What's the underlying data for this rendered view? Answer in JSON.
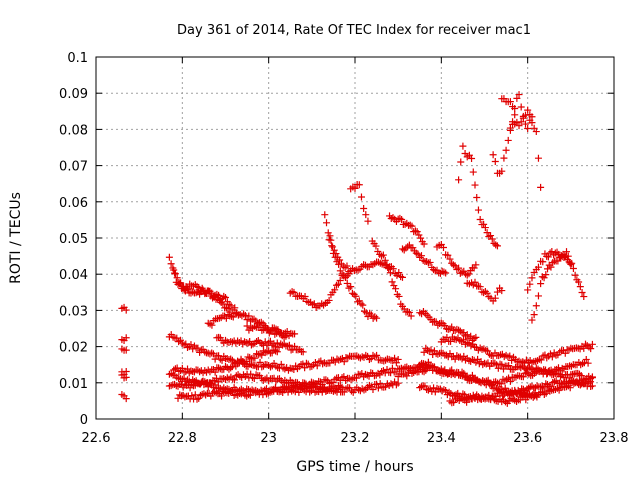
{
  "chart_data": {
    "type": "scatter",
    "title": "Day 361 of 2014, Rate Of TEC Index for receiver mac1",
    "xlabel": "GPS time / hours",
    "ylabel": "ROTI / TECUs",
    "xlim": [
      22.6,
      23.8
    ],
    "ylim": [
      0,
      0.1
    ],
    "xticks": [
      "22.6",
      "22.8",
      "23",
      "23.2",
      "23.4",
      "23.6",
      "23.8"
    ],
    "yticks": [
      "0",
      "0.01",
      "0.02",
      "0.03",
      "0.04",
      "0.05",
      "0.06",
      "0.07",
      "0.08",
      "0.09",
      "0.1"
    ],
    "grid": true,
    "marker": "+",
    "color": "#e00000",
    "tracks": [
      {
        "x": [
          22.66,
          22.67
        ],
        "y": [
          0.031,
          0.03
        ]
      },
      {
        "x": [
          22.66,
          22.67
        ],
        "y": [
          0.022,
          0.022
        ]
      },
      {
        "x": [
          22.66,
          22.67
        ],
        "y": [
          0.019,
          0.019
        ]
      },
      {
        "x": [
          22.66,
          22.67
        ],
        "y": [
          0.013,
          0.013
        ]
      },
      {
        "x": [
          22.66,
          22.67
        ],
        "y": [
          0.012,
          0.011
        ]
      },
      {
        "x": [
          22.66,
          22.67
        ],
        "y": [
          0.007,
          0.006
        ]
      },
      {
        "x": [
          22.77,
          22.79,
          22.82,
          22.86,
          22.9,
          22.93
        ],
        "y": [
          0.044,
          0.037,
          0.035,
          0.035,
          0.033,
          0.029
        ]
      },
      {
        "x": [
          22.78,
          22.8,
          22.83,
          22.87,
          22.91
        ],
        "y": [
          0.041,
          0.036,
          0.037,
          0.034,
          0.03
        ]
      },
      {
        "x": [
          22.77,
          22.8,
          22.84,
          22.88,
          22.92,
          22.96,
          23.0,
          23.05,
          23.1,
          23.15,
          23.2,
          23.25,
          23.3
        ],
        "y": [
          0.023,
          0.021,
          0.019,
          0.017,
          0.016,
          0.015,
          0.015,
          0.014,
          0.015,
          0.016,
          0.017,
          0.017,
          0.016
        ]
      },
      {
        "x": [
          22.77,
          22.8,
          22.84,
          22.88,
          22.92,
          22.97,
          23.02,
          23.07,
          23.12,
          23.17,
          23.22,
          23.27,
          23.32,
          23.37
        ],
        "y": [
          0.012,
          0.011,
          0.01,
          0.009,
          0.008,
          0.008,
          0.008,
          0.009,
          0.01,
          0.011,
          0.012,
          0.013,
          0.014,
          0.015
        ]
      },
      {
        "x": [
          22.77,
          22.81,
          22.85,
          22.9,
          22.95,
          23.0,
          23.05,
          23.1,
          23.15,
          23.2,
          23.25,
          23.3
        ],
        "y": [
          0.009,
          0.009,
          0.01,
          0.011,
          0.012,
          0.011,
          0.01,
          0.009,
          0.008,
          0.008,
          0.009,
          0.01
        ]
      },
      {
        "x": [
          22.78,
          22.82,
          22.86,
          22.9,
          22.94,
          22.98,
          23.02
        ],
        "y": [
          0.014,
          0.013,
          0.013,
          0.014,
          0.016,
          0.018,
          0.019
        ]
      },
      {
        "x": [
          22.79,
          22.83,
          22.87,
          22.92,
          22.97,
          23.02,
          23.07,
          23.12,
          23.17
        ],
        "y": [
          0.006,
          0.006,
          0.007,
          0.007,
          0.007,
          0.008,
          0.008,
          0.008,
          0.009
        ]
      },
      {
        "x": [
          22.86,
          22.89,
          22.93,
          22.97,
          23.0,
          23.03,
          23.06
        ],
        "y": [
          0.026,
          0.028,
          0.029,
          0.027,
          0.025,
          0.024,
          0.023
        ]
      },
      {
        "x": [
          22.88,
          22.92,
          22.96,
          23.0,
          23.04,
          23.08
        ],
        "y": [
          0.022,
          0.021,
          0.021,
          0.021,
          0.02,
          0.019
        ]
      },
      {
        "x": [
          22.95,
          22.98,
          23.01,
          23.04
        ],
        "y": [
          0.025,
          0.025,
          0.024,
          0.023
        ]
      },
      {
        "x": [
          23.05,
          23.08,
          23.11,
          23.14,
          23.17,
          23.19
        ],
        "y": [
          0.035,
          0.034,
          0.031,
          0.033,
          0.039,
          0.041
        ]
      },
      {
        "x": [
          23.13,
          23.15,
          23.17,
          23.19,
          23.21,
          23.23,
          23.25
        ],
        "y": [
          0.056,
          0.046,
          0.04,
          0.036,
          0.032,
          0.029,
          0.028
        ]
      },
      {
        "x": [
          23.14,
          23.16,
          23.19,
          23.22,
          23.25,
          23.28,
          23.31
        ],
        "y": [
          0.05,
          0.044,
          0.041,
          0.042,
          0.043,
          0.042,
          0.039
        ]
      },
      {
        "x": [
          23.19,
          23.2,
          23.21,
          23.22,
          23.23
        ],
        "y": [
          0.063,
          0.064,
          0.065,
          0.058,
          0.054
        ]
      },
      {
        "x": [
          23.24,
          23.27,
          23.29,
          23.31,
          23.33
        ],
        "y": [
          0.049,
          0.044,
          0.037,
          0.031,
          0.029
        ]
      },
      {
        "x": [
          23.28,
          23.3,
          23.32,
          23.34,
          23.36
        ],
        "y": [
          0.056,
          0.055,
          0.054,
          0.052,
          0.049
        ]
      },
      {
        "x": [
          23.31,
          23.33,
          23.35,
          23.37,
          23.39,
          23.41
        ],
        "y": [
          0.047,
          0.048,
          0.045,
          0.043,
          0.041,
          0.04
        ]
      },
      {
        "x": [
          23.35,
          23.38,
          23.4,
          23.42,
          23.44,
          23.46,
          23.48
        ],
        "y": [
          0.03,
          0.027,
          0.026,
          0.025,
          0.024,
          0.023,
          0.022
        ]
      },
      {
        "x": [
          23.39,
          23.4,
          23.41,
          23.42,
          23.44,
          23.46,
          23.48
        ],
        "y": [
          0.047,
          0.048,
          0.046,
          0.044,
          0.041,
          0.04,
          0.043
        ]
      },
      {
        "x": [
          23.44,
          23.45,
          23.46,
          23.47,
          23.49,
          23.51,
          23.53
        ],
        "y": [
          0.066,
          0.075,
          0.073,
          0.072,
          0.055,
          0.051,
          0.048
        ]
      },
      {
        "x": [
          23.46,
          23.47,
          23.49,
          23.51,
          23.52,
          23.53,
          23.54
        ],
        "y": [
          0.037,
          0.038,
          0.036,
          0.034,
          0.033,
          0.035,
          0.036
        ]
      },
      {
        "x": [
          23.52,
          23.53,
          23.54,
          23.55,
          23.56,
          23.57
        ],
        "y": [
          0.073,
          0.068,
          0.069,
          0.074,
          0.08,
          0.084
        ]
      },
      {
        "x": [
          23.54,
          23.55,
          23.56,
          23.57,
          23.58,
          23.59,
          23.6,
          23.61
        ],
        "y": [
          0.088,
          0.088,
          0.087,
          0.086,
          0.09,
          0.083,
          0.08,
          0.084
        ]
      },
      {
        "x": [
          23.56,
          23.57,
          23.58,
          23.59,
          23.6,
          23.61,
          23.62,
          23.63
        ],
        "y": [
          0.081,
          0.082,
          0.081,
          0.083,
          0.085,
          0.082,
          0.08,
          0.064
        ]
      },
      {
        "x": [
          23.6,
          23.61,
          23.62,
          23.63,
          23.64,
          23.66,
          23.68,
          23.7
        ],
        "y": [
          0.036,
          0.039,
          0.041,
          0.043,
          0.045,
          0.046,
          0.045,
          0.043
        ]
      },
      {
        "x": [
          23.61,
          23.62,
          23.63,
          23.65,
          23.67,
          23.69,
          23.71,
          23.73
        ],
        "y": [
          0.028,
          0.031,
          0.038,
          0.042,
          0.044,
          0.046,
          0.04,
          0.034
        ]
      },
      {
        "x": [
          23.35,
          23.38,
          23.41,
          23.44,
          23.47,
          23.5,
          23.53,
          23.56,
          23.59,
          23.62,
          23.65,
          23.68,
          23.71,
          23.74
        ],
        "y": [
          0.015,
          0.014,
          0.013,
          0.012,
          0.011,
          0.01,
          0.01,
          0.011,
          0.012,
          0.013,
          0.013,
          0.014,
          0.015,
          0.016
        ]
      },
      {
        "x": [
          23.35,
          23.39,
          23.43,
          23.47,
          23.51,
          23.55,
          23.59,
          23.63,
          23.67,
          23.71,
          23.75
        ],
        "y": [
          0.009,
          0.008,
          0.007,
          0.006,
          0.006,
          0.007,
          0.008,
          0.009,
          0.01,
          0.01,
          0.009
        ]
      },
      {
        "x": [
          23.36,
          23.4,
          23.44,
          23.48,
          23.52,
          23.56,
          23.6,
          23.64,
          23.68,
          23.72,
          23.75
        ],
        "y": [
          0.019,
          0.018,
          0.017,
          0.016,
          0.015,
          0.014,
          0.014,
          0.013,
          0.012,
          0.012,
          0.011
        ]
      },
      {
        "x": [
          23.4,
          23.43,
          23.46,
          23.49,
          23.52,
          23.55,
          23.58,
          23.61,
          23.64,
          23.67,
          23.7,
          23.73,
          23.75
        ],
        "y": [
          0.022,
          0.022,
          0.021,
          0.019,
          0.018,
          0.017,
          0.016,
          0.016,
          0.017,
          0.018,
          0.019,
          0.02,
          0.02
        ]
      },
      {
        "x": [
          23.3,
          23.34,
          23.38,
          23.42,
          23.46,
          23.5,
          23.54,
          23.58,
          23.62
        ],
        "y": [
          0.012,
          0.013,
          0.014,
          0.013,
          0.012,
          0.01,
          0.008,
          0.007,
          0.006
        ]
      },
      {
        "x": [
          23.42,
          23.45,
          23.48,
          23.51,
          23.54,
          23.57,
          23.6,
          23.63,
          23.66,
          23.69,
          23.72,
          23.75
        ],
        "y": [
          0.005,
          0.005,
          0.006,
          0.006,
          0.005,
          0.005,
          0.006,
          0.007,
          0.008,
          0.009,
          0.01,
          0.011
        ]
      }
    ]
  }
}
